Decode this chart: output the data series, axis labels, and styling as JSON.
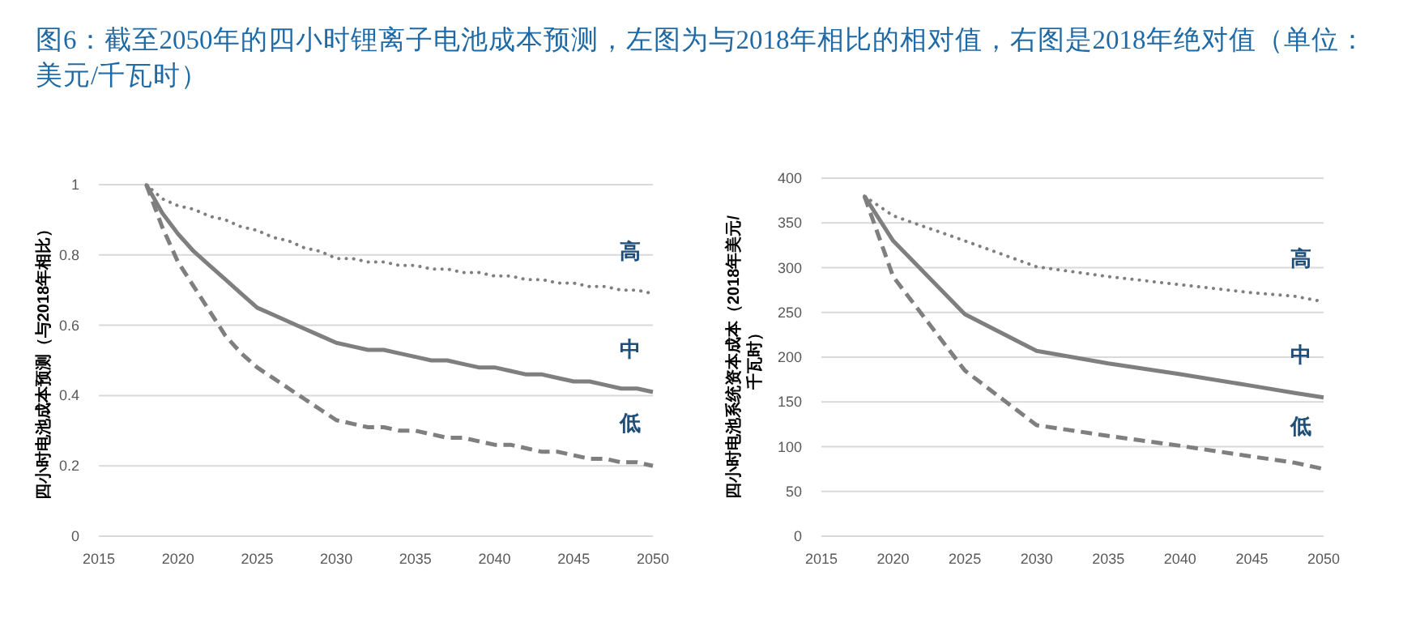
{
  "chart_data": [
    {
      "type": "line",
      "title": "图6：截至2050年的四小时锂离子电池成本预测，左图为与2018年相比的相对值，右图是2018年绝对值（单位：美元/千瓦时）",
      "ylabel": "四小时电池成本预测（与2018年相比）",
      "x": [
        2018,
        2019,
        2020,
        2021,
        2022,
        2023,
        2024,
        2025,
        2026,
        2027,
        2028,
        2029,
        2030,
        2031,
        2032,
        2033,
        2034,
        2035,
        2036,
        2037,
        2038,
        2039,
        2040,
        2041,
        2042,
        2043,
        2044,
        2045,
        2046,
        2047,
        2048,
        2049,
        2050
      ],
      "xlim": [
        2015,
        2050
      ],
      "xticks": [
        2015,
        2020,
        2025,
        2030,
        2035,
        2040,
        2045,
        2050
      ],
      "ylim": [
        0,
        1
      ],
      "yticks": [
        0,
        0.2,
        0.4,
        0.6,
        0.8,
        1
      ],
      "grid": "y",
      "series": [
        {
          "name": "高",
          "color": "#7f7f7f",
          "line_style": "dotted",
          "values": [
            1,
            0.96,
            0.94,
            0.93,
            0.91,
            0.9,
            0.88,
            0.87,
            0.85,
            0.84,
            0.82,
            0.81,
            0.79,
            0.79,
            0.78,
            0.78,
            0.77,
            0.77,
            0.76,
            0.76,
            0.75,
            0.75,
            0.74,
            0.74,
            0.73,
            0.73,
            0.72,
            0.72,
            0.71,
            0.71,
            0.7,
            0.7,
            0.69
          ]
        },
        {
          "name": "中",
          "color": "#7f7f7f",
          "line_style": "solid",
          "values": [
            1,
            0.92,
            0.86,
            0.81,
            0.77,
            0.73,
            0.69,
            0.65,
            0.63,
            0.61,
            0.59,
            0.57,
            0.55,
            0.54,
            0.53,
            0.53,
            0.52,
            0.51,
            0.5,
            0.5,
            0.49,
            0.48,
            0.48,
            0.47,
            0.46,
            0.46,
            0.45,
            0.44,
            0.44,
            0.43,
            0.42,
            0.42,
            0.41
          ]
        },
        {
          "name": "低",
          "color": "#7f7f7f",
          "line_style": "dashed",
          "values": [
            1,
            0.88,
            0.78,
            0.71,
            0.64,
            0.57,
            0.52,
            0.48,
            0.45,
            0.42,
            0.39,
            0.36,
            0.33,
            0.32,
            0.31,
            0.31,
            0.3,
            0.3,
            0.29,
            0.28,
            0.28,
            0.27,
            0.26,
            0.26,
            0.25,
            0.24,
            0.24,
            0.23,
            0.22,
            0.22,
            0.21,
            0.21,
            0.2
          ]
        }
      ]
    },
    {
      "type": "line",
      "ylabel": "四小时电池系统资本成本（2018年美元/千瓦时）",
      "x": [
        2018,
        2020,
        2025,
        2030,
        2035,
        2040,
        2045,
        2048,
        2050
      ],
      "xlim": [
        2015,
        2050
      ],
      "xticks": [
        2015,
        2020,
        2025,
        2030,
        2035,
        2040,
        2045,
        2050
      ],
      "ylim": [
        0,
        400
      ],
      "yticks": [
        0,
        50,
        100,
        150,
        200,
        250,
        300,
        350,
        400
      ],
      "grid": "y",
      "series": [
        {
          "name": "高",
          "color": "#7f7f7f",
          "line_style": "dotted",
          "values": [
            380,
            358,
            330,
            301,
            290,
            281,
            272,
            268,
            262
          ]
        },
        {
          "name": "中",
          "color": "#7f7f7f",
          "line_style": "solid",
          "values": [
            380,
            330,
            248,
            207,
            193,
            181,
            168,
            160,
            155
          ]
        },
        {
          "name": "低",
          "color": "#7f7f7f",
          "line_style": "dashed",
          "values": [
            380,
            290,
            185,
            124,
            112,
            101,
            89,
            82,
            75
          ]
        }
      ]
    }
  ]
}
